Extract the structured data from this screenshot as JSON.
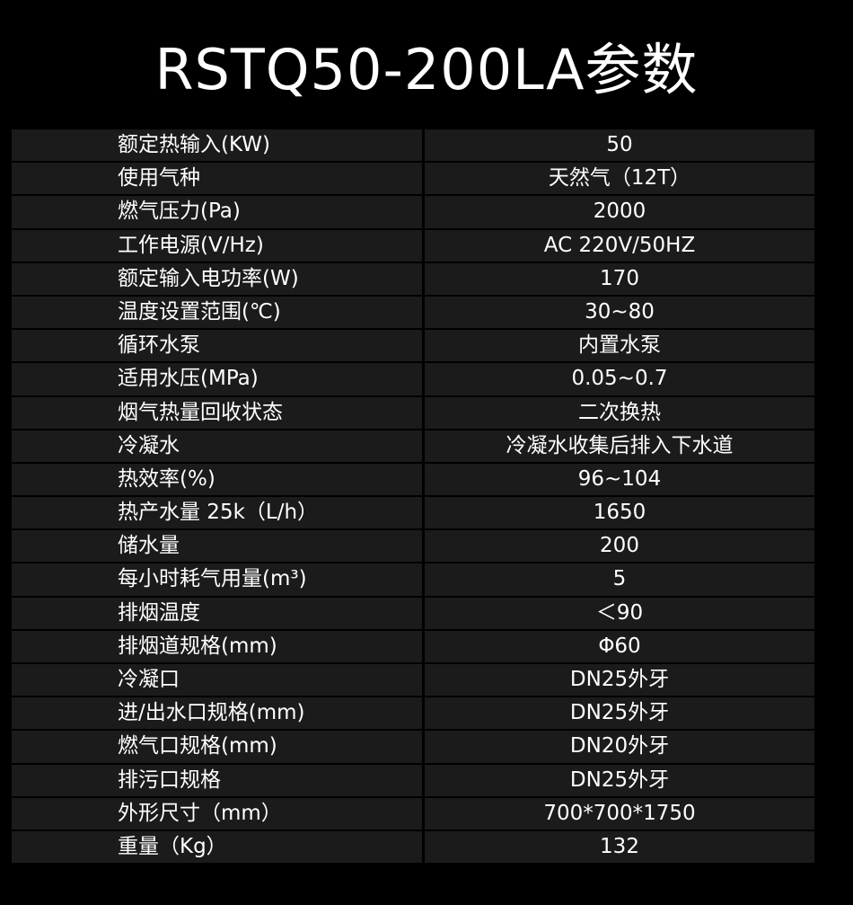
{
  "title": "RSTQ50-200LA参数",
  "rows": [
    {
      "label": "额定热输入(KW)",
      "value": "50"
    },
    {
      "label": "使用气种",
      "value": "天然气（12T）"
    },
    {
      "label": "燃气压力(Pa)",
      "value": "2000"
    },
    {
      "label": "工作电源(V/Hz)",
      "value": "AC 220V/50HZ"
    },
    {
      "label": "额定输入电功率(W)",
      "value": "170"
    },
    {
      "label": "温度设置范围(℃)",
      "value": "30~80"
    },
    {
      "label": "循环水泵",
      "value": "内置水泵"
    },
    {
      "label": "适用水压(MPa)",
      "value": "0.05~0.7"
    },
    {
      "label": "烟气热量回收状态",
      "value": "二次换热"
    },
    {
      "label": "冷凝水",
      "value": "冷凝水收集后排入下水道"
    },
    {
      "label": "热效率(%)",
      "value": "96~104"
    },
    {
      "label": "热产水量 25k（L/h）",
      "value": "1650"
    },
    {
      "label": "储水量",
      "value": "200"
    },
    {
      "label": "每小时耗气用量(m³)",
      "value": "5"
    },
    {
      "label": "排烟温度",
      "value": "＜90"
    },
    {
      "label": "排烟道规格(mm)",
      "value": "Φ60"
    },
    {
      "label": "冷凝口",
      "value": "DN25外牙"
    },
    {
      "label": "进/出水口规格(mm)",
      "value": "DN25外牙"
    },
    {
      "label": "燃气口规格(mm)",
      "value": "DN20外牙"
    },
    {
      "label": "排污口规格",
      "value": "DN25外牙"
    },
    {
      "label": "外形尺寸（mm）",
      "value": "700*700*1750"
    },
    {
      "label": "重量（Kg）",
      "value": "132"
    }
  ]
}
